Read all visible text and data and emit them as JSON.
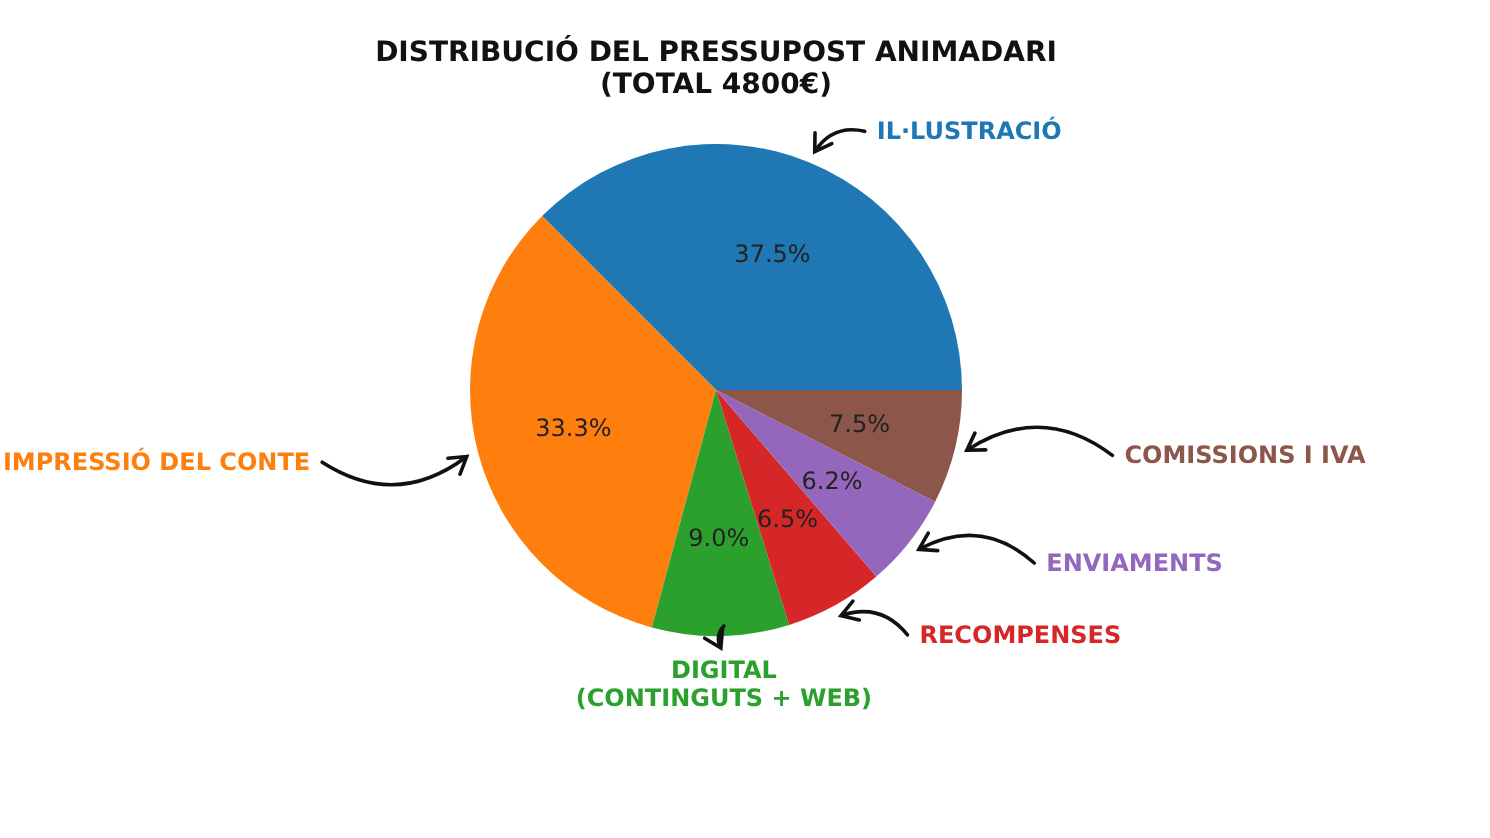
{
  "chart_data": {
    "type": "pie",
    "title": "DISTRIBUCIÓ DEL PRESSUPOST ANIMADARI\n(TOTAL 4800€)",
    "categories": [
      "IL·LUSTRACIÓ",
      "IMPRESSIÓ DEL CONTE",
      "DIGITAL\n(CONTINGUTS + WEB)",
      "RECOMPENSES",
      "ENVIAMENTS",
      "COMISSIONS I IVA"
    ],
    "values": [
      37.5,
      33.3,
      9.0,
      6.5,
      6.2,
      7.5
    ],
    "value_labels": [
      "37.5%",
      "33.3%",
      "9.0%",
      "6.5%",
      "6.2%",
      "7.5%"
    ],
    "colors": [
      "#1f77b4",
      "#ff7f0e",
      "#2ca02c",
      "#d62728",
      "#9467bd",
      "#8c564b"
    ],
    "legend": false
  }
}
